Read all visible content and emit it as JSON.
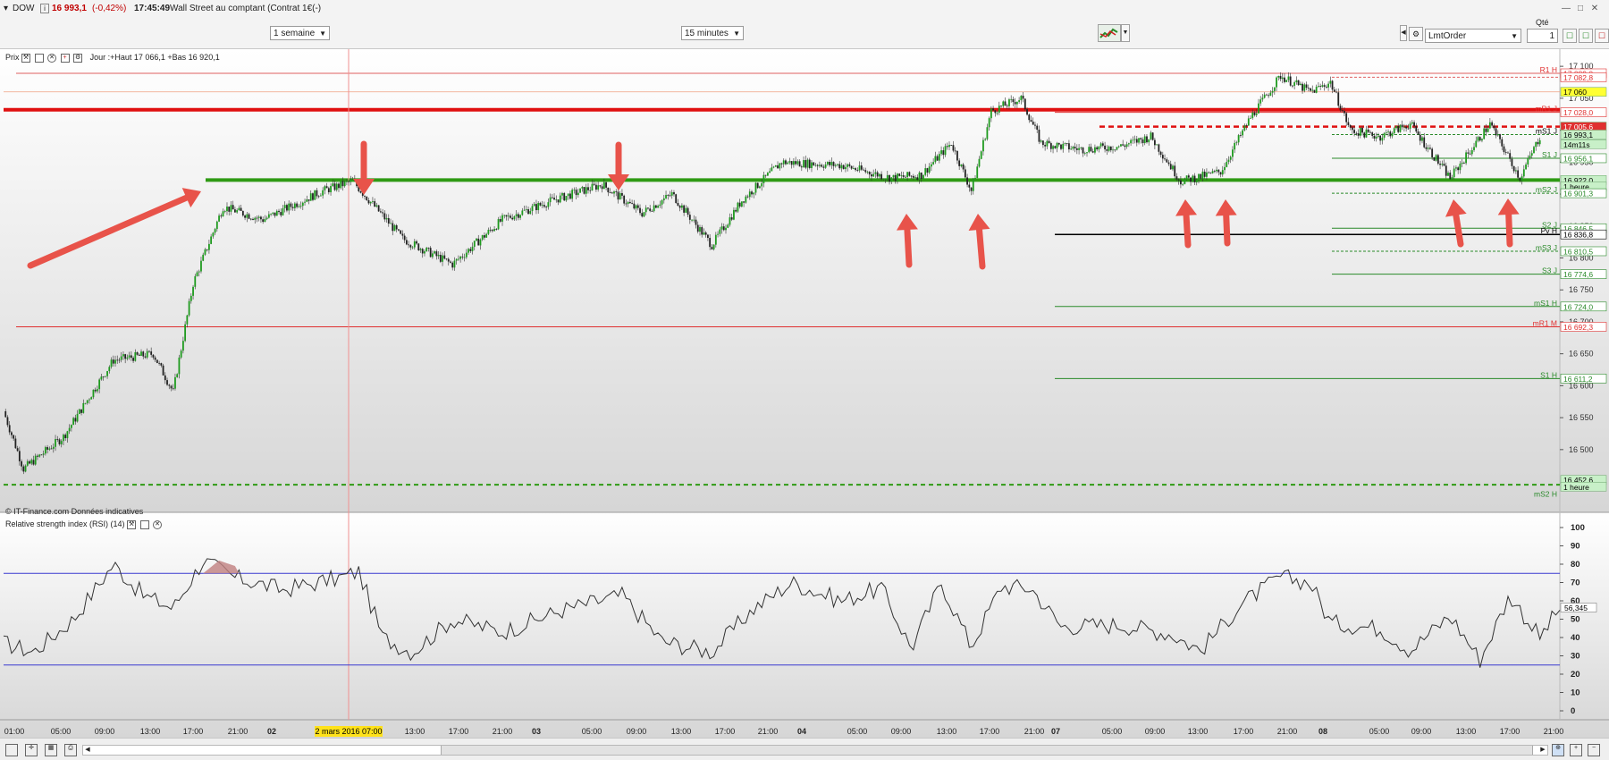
{
  "titlebar": {
    "symbol": "DOW",
    "last": "16 993,1",
    "change": "(-0,42%)",
    "time": "17:45:49",
    "description": "Wall Street au comptant (Contrat 1€(-)"
  },
  "toolbar": {
    "period": "1 semaine",
    "interval": "15 minutes",
    "order_type": "LmtOrder",
    "qty_label": "Qté",
    "qty_value": "1"
  },
  "price_panel": {
    "label": "Prix",
    "info": "Jour :+Haut 17 066,1 +Bas 16 920,1",
    "copyright": "© IT-Finance.com Données indicatives",
    "y_ticks": [
      "17 100",
      "17 050",
      "17 000",
      "16 950",
      "16 900",
      "16 850",
      "16 800",
      "16 750",
      "16 700",
      "16 650",
      "16 600",
      "16 550",
      "16 500"
    ],
    "level_boxes": [
      {
        "value": "17 089,0",
        "label": "R1 H",
        "color": "#e03030",
        "bg": "#ffffff",
        "price": 17089.0
      },
      {
        "value": "17 082,8",
        "label": "",
        "color": "#e03030",
        "bg": "#ffffff",
        "price": 17082.8
      },
      {
        "value": "17 060",
        "label": "",
        "color": "#000000",
        "bg": "#ffff33",
        "price": 17060.0
      },
      {
        "value": "17 028,0",
        "label": "mR1 J",
        "color": "#e03030",
        "bg": "#ffffff",
        "price": 17028.0
      },
      {
        "value": "17 005,6",
        "label": "",
        "color": "#ffffff",
        "bg": "#e03030",
        "price": 17005.6
      },
      {
        "value": "16 993,1",
        "label": "mS1 J",
        "color": "#000000",
        "bg": "#c8f0c8",
        "price": 16993.1
      },
      {
        "value": "14m11s",
        "label": "",
        "color": "#000000",
        "bg": "#c8f0c8",
        "price": 16978.0
      },
      {
        "value": "16 956,1",
        "label": "S1 J",
        "color": "#2a8a2a",
        "bg": "#ffffff",
        "price": 16956.1
      },
      {
        "value": "16 922,0",
        "label": "",
        "color": "#000000",
        "bg": "#c8f0c8",
        "price": 16922.0
      },
      {
        "value": "1 heure",
        "label": "",
        "color": "#000000",
        "bg": "#c8f0c8",
        "price": 16912.0
      },
      {
        "value": "16 901,3",
        "label": "mS2 J",
        "color": "#2a8a2a",
        "bg": "#ffffff",
        "price": 16901.3
      },
      {
        "value": "16 846,5",
        "label": "S2 J",
        "color": "#2a8a2a",
        "bg": "#ffffff",
        "price": 16846.5
      },
      {
        "value": "16 836,8",
        "label": "Pv H",
        "color": "#000000",
        "bg": "#ffffff",
        "price": 16836.8
      },
      {
        "value": "16 810,5",
        "label": "mS3 J",
        "color": "#2a8a2a",
        "bg": "#ffffff",
        "price": 16810.5
      },
      {
        "value": "16 774,6",
        "label": "S3 J",
        "color": "#2a8a2a",
        "bg": "#ffffff",
        "price": 16774.6
      },
      {
        "value": "16 724,0",
        "label": "mS1 H",
        "color": "#2a8a2a",
        "bg": "#ffffff",
        "price": 16724.0
      },
      {
        "value": "16 692,3",
        "label": "mR1 M",
        "color": "#e03030",
        "bg": "#ffffff",
        "price": 16692.3
      },
      {
        "value": "16 611,2",
        "label": "S1 H",
        "color": "#2a8a2a",
        "bg": "#ffffff",
        "price": 16611.2
      },
      {
        "value": "16 452,6",
        "label": "",
        "color": "#000000",
        "bg": "#c8f0c8",
        "price": 16452.6
      },
      {
        "value": "1 heure",
        "label": "",
        "color": "#000000",
        "bg": "#c8f0c8",
        "price": 16442.0
      },
      {
        "value": "",
        "label": "mS2 H",
        "color": "#2a8a2a",
        "bg": "#ffffff",
        "price": 16425.0
      }
    ]
  },
  "rsi_panel": {
    "label": "Relative strength index (RSI) (14)",
    "y_ticks": [
      "100",
      "90",
      "80",
      "70",
      "60",
      "50",
      "40",
      "30",
      "20",
      "10",
      "0"
    ],
    "current": "56,345"
  },
  "time_axis": {
    "labels": [
      "01:00",
      "05:00",
      "09:00",
      "13:00",
      "17:00",
      "21:00",
      "02",
      "2 mars 2016 07:00",
      "13:00",
      "17:00",
      "21:00",
      "03",
      "05:00",
      "09:00",
      "13:00",
      "17:00",
      "21:00",
      "04",
      "05:00",
      "09:00",
      "13:00",
      "17:00",
      "21:00",
      "07",
      "05:00",
      "09:00",
      "13:00",
      "17:00",
      "21:00",
      "08",
      "05:00",
      "09:00",
      "13:00",
      "17:00",
      "21:00"
    ],
    "cursor_label": "2 mars 2016 07:00"
  },
  "colors": {
    "candle_up": "#1e9a1e",
    "candle_down": "#222222",
    "resistance": "#e01010",
    "support": "#2f9a14",
    "arrow": "#e8534a",
    "rsi_band": "#3a3ad0"
  },
  "chart_data": {
    "type": "candlestick",
    "instrument": "DOW",
    "timeframe": "15 minutes",
    "price_range": [
      16420,
      17110
    ],
    "path_anchors": [
      {
        "t": 0,
        "p": 16560
      },
      {
        "t": 10,
        "p": 16470
      },
      {
        "t": 30,
        "p": 16520
      },
      {
        "t": 55,
        "p": 16640
      },
      {
        "t": 75,
        "p": 16650
      },
      {
        "t": 85,
        "p": 16590
      },
      {
        "t": 95,
        "p": 16760
      },
      {
        "t": 110,
        "p": 16880
      },
      {
        "t": 130,
        "p": 16860
      },
      {
        "t": 160,
        "p": 16905
      },
      {
        "t": 175,
        "p": 16920
      },
      {
        "t": 200,
        "p": 16830
      },
      {
        "t": 225,
        "p": 16790
      },
      {
        "t": 250,
        "p": 16860
      },
      {
        "t": 275,
        "p": 16890
      },
      {
        "t": 300,
        "p": 16915
      },
      {
        "t": 320,
        "p": 16870
      },
      {
        "t": 335,
        "p": 16900
      },
      {
        "t": 355,
        "p": 16820
      },
      {
        "t": 370,
        "p": 16890
      },
      {
        "t": 390,
        "p": 16950
      },
      {
        "t": 420,
        "p": 16945
      },
      {
        "t": 445,
        "p": 16925
      },
      {
        "t": 460,
        "p": 16930
      },
      {
        "t": 475,
        "p": 16980
      },
      {
        "t": 485,
        "p": 16905
      },
      {
        "t": 495,
        "p": 17030
      },
      {
        "t": 510,
        "p": 17050
      },
      {
        "t": 520,
        "p": 16980
      },
      {
        "t": 540,
        "p": 16970
      },
      {
        "t": 560,
        "p": 16975
      },
      {
        "t": 575,
        "p": 16990
      },
      {
        "t": 590,
        "p": 16920
      },
      {
        "t": 610,
        "p": 16935
      },
      {
        "t": 625,
        "p": 17020
      },
      {
        "t": 640,
        "p": 17085
      },
      {
        "t": 655,
        "p": 17060
      },
      {
        "t": 665,
        "p": 17075
      },
      {
        "t": 675,
        "p": 17000
      },
      {
        "t": 690,
        "p": 16990
      },
      {
        "t": 705,
        "p": 17010
      },
      {
        "t": 725,
        "p": 16925
      },
      {
        "t": 745,
        "p": 17010
      },
      {
        "t": 760,
        "p": 16925
      },
      {
        "t": 770,
        "p": 16990
      }
    ],
    "rsi": [
      {
        "t": 0,
        "v": 37
      },
      {
        "t": 15,
        "v": 32
      },
      {
        "t": 35,
        "v": 50
      },
      {
        "t": 55,
        "v": 80
      },
      {
        "t": 70,
        "v": 63
      },
      {
        "t": 85,
        "v": 56
      },
      {
        "t": 100,
        "v": 82
      },
      {
        "t": 115,
        "v": 73
      },
      {
        "t": 140,
        "v": 66
      },
      {
        "t": 170,
        "v": 73
      },
      {
        "t": 178,
        "v": 76
      },
      {
        "t": 190,
        "v": 40
      },
      {
        "t": 205,
        "v": 32
      },
      {
        "t": 225,
        "v": 50
      },
      {
        "t": 250,
        "v": 43
      },
      {
        "t": 280,
        "v": 55
      },
      {
        "t": 310,
        "v": 63
      },
      {
        "t": 330,
        "v": 38
      },
      {
        "t": 355,
        "v": 32
      },
      {
        "t": 375,
        "v": 55
      },
      {
        "t": 395,
        "v": 70
      },
      {
        "t": 420,
        "v": 60
      },
      {
        "t": 440,
        "v": 67
      },
      {
        "t": 455,
        "v": 34
      },
      {
        "t": 470,
        "v": 70
      },
      {
        "t": 485,
        "v": 35
      },
      {
        "t": 500,
        "v": 68
      },
      {
        "t": 515,
        "v": 67
      },
      {
        "t": 530,
        "v": 46
      },
      {
        "t": 560,
        "v": 47
      },
      {
        "t": 585,
        "v": 42
      },
      {
        "t": 600,
        "v": 33
      },
      {
        "t": 620,
        "v": 58
      },
      {
        "t": 640,
        "v": 73
      },
      {
        "t": 655,
        "v": 70
      },
      {
        "t": 665,
        "v": 48
      },
      {
        "t": 690,
        "v": 45
      },
      {
        "t": 705,
        "v": 33
      },
      {
        "t": 725,
        "v": 52
      },
      {
        "t": 740,
        "v": 28
      },
      {
        "t": 755,
        "v": 63
      },
      {
        "t": 770,
        "v": 40
      },
      {
        "t": 780,
        "v": 56
      }
    ],
    "rsi_levels": [
      25,
      75
    ]
  }
}
